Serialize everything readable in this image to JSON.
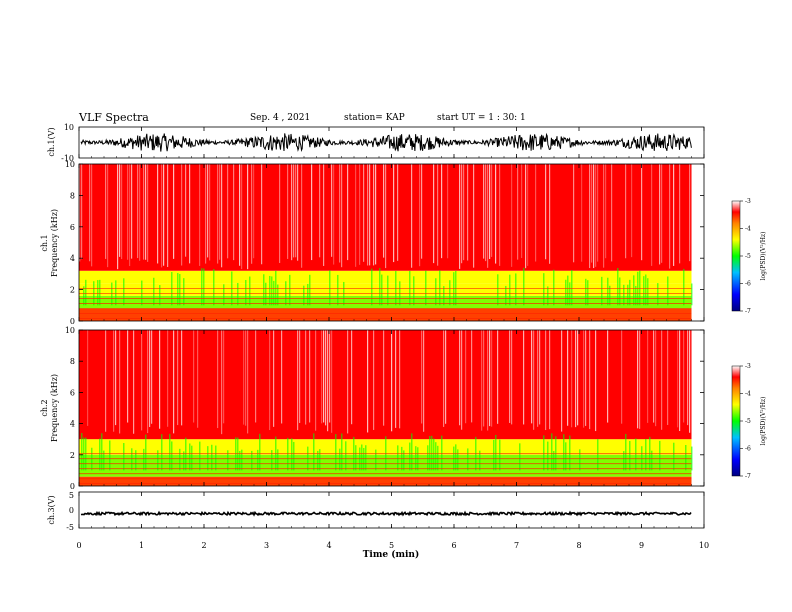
{
  "header": {
    "title": "VLF Spectra",
    "date": "Sep. 4 , 2021",
    "station": "station= KAP",
    "start_ut": "start UT =  1 : 30: 1"
  },
  "colors": {
    "spectrum_high": "#ff0000",
    "spectrum_mid": "#ffff00",
    "spectrum_low_mid": "#00ff00",
    "spectrum_low": "#0000ff",
    "waveform": "#000000"
  },
  "chart_data": [
    {
      "type": "line",
      "name": "ch1-waveform",
      "ylabel": "ch.1(V)",
      "ylim": [
        -10,
        10
      ],
      "yticks": [
        "10",
        "-10"
      ],
      "xlim": [
        0,
        10
      ],
      "values_summary": "dense oscillation between about -6 and 6 V over 0-9.8 min"
    },
    {
      "type": "heatmap",
      "name": "ch1-spectrogram",
      "ylabel": "ch.1\nFrequency (kHz)",
      "ylim": [
        0,
        10
      ],
      "yticks": [
        "0",
        "2",
        "4",
        "6",
        "8",
        "10"
      ],
      "xlim": [
        0,
        10
      ],
      "data_extent_min": 9.8,
      "bands": [
        {
          "from_khz": 0,
          "to_khz": 0.8,
          "level": -3.6
        },
        {
          "from_khz": 0.8,
          "to_khz": 1.6,
          "level": -4.6
        },
        {
          "from_khz": 1.6,
          "to_khz": 2.4,
          "level": -4.3
        },
        {
          "from_khz": 2.4,
          "to_khz": 3.2,
          "level": -4.4
        },
        {
          "from_khz": 3.2,
          "to_khz": 10,
          "level": -3.4
        }
      ],
      "colorbar": {
        "label": "log(PSD)(V²/Hz)",
        "ticks": [
          "-3",
          "-4",
          "-5",
          "-6",
          "-7"
        ],
        "range": [
          -7,
          -3
        ]
      }
    },
    {
      "type": "heatmap",
      "name": "ch2-spectrogram",
      "ylabel": "ch.2\nFrequency (kHz)",
      "ylim": [
        0,
        10
      ],
      "yticks": [
        "0",
        "2",
        "4",
        "6",
        "8",
        "10"
      ],
      "xlim": [
        0,
        10
      ],
      "data_extent_min": 9.8,
      "bands": [
        {
          "from_khz": 0,
          "to_khz": 0.6,
          "level": -3.6
        },
        {
          "from_khz": 0.6,
          "to_khz": 2.0,
          "level": -4.7
        },
        {
          "from_khz": 2.0,
          "to_khz": 3.0,
          "level": -4.4
        },
        {
          "from_khz": 3.0,
          "to_khz": 10,
          "level": -3.4
        }
      ],
      "colorbar": {
        "label": "log(PSD)(V²/Hz)",
        "ticks": [
          "-3",
          "-4",
          "-5",
          "-6",
          "-7"
        ],
        "range": [
          -7,
          -3
        ]
      }
    },
    {
      "type": "line",
      "name": "ch3-waveform",
      "ylabel": "ch.3(V)",
      "ylim": [
        -5,
        5
      ],
      "yticks": [
        "5",
        "0",
        "-5"
      ],
      "xlim": [
        0,
        10
      ],
      "values_summary": "near-constant level around -1 V with small noise"
    }
  ],
  "xaxis": {
    "label": "Time (min)",
    "ticks": [
      "0",
      "1",
      "2",
      "3",
      "4",
      "5",
      "6",
      "7",
      "8",
      "9",
      "10"
    ]
  }
}
